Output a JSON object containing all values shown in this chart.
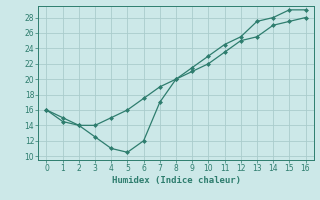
{
  "xlabel": "Humidex (Indice chaleur)",
  "ylabel": "",
  "bg_color": "#cce8e8",
  "grid_color": "#aacccc",
  "line_color": "#2e7d6e",
  "line1_x": [
    0,
    1,
    2,
    3,
    4,
    5,
    6,
    7,
    8,
    9,
    10,
    11,
    12,
    13,
    14,
    15,
    16
  ],
  "line1_y": [
    16,
    15,
    14,
    14,
    15,
    16,
    17.5,
    19,
    20,
    21,
    22,
    23.5,
    25,
    25.5,
    27,
    27.5,
    28
  ],
  "line2_x": [
    0,
    1,
    2,
    3,
    4,
    5,
    6,
    7,
    8,
    9,
    10,
    11,
    12,
    13,
    14,
    15,
    16
  ],
  "line2_y": [
    16,
    14.5,
    14,
    12.5,
    11,
    10.5,
    12,
    17,
    20,
    21.5,
    23,
    24.5,
    25.5,
    27.5,
    28,
    29,
    29
  ],
  "xlim": [
    -0.5,
    16.5
  ],
  "ylim": [
    9.5,
    29.5
  ],
  "yticks": [
    10,
    12,
    14,
    16,
    18,
    20,
    22,
    24,
    26,
    28
  ],
  "xticks": [
    0,
    1,
    2,
    3,
    4,
    5,
    6,
    7,
    8,
    9,
    10,
    11,
    12,
    13,
    14,
    15,
    16
  ],
  "tick_fontsize": 5.5,
  "xlabel_fontsize": 6.5
}
